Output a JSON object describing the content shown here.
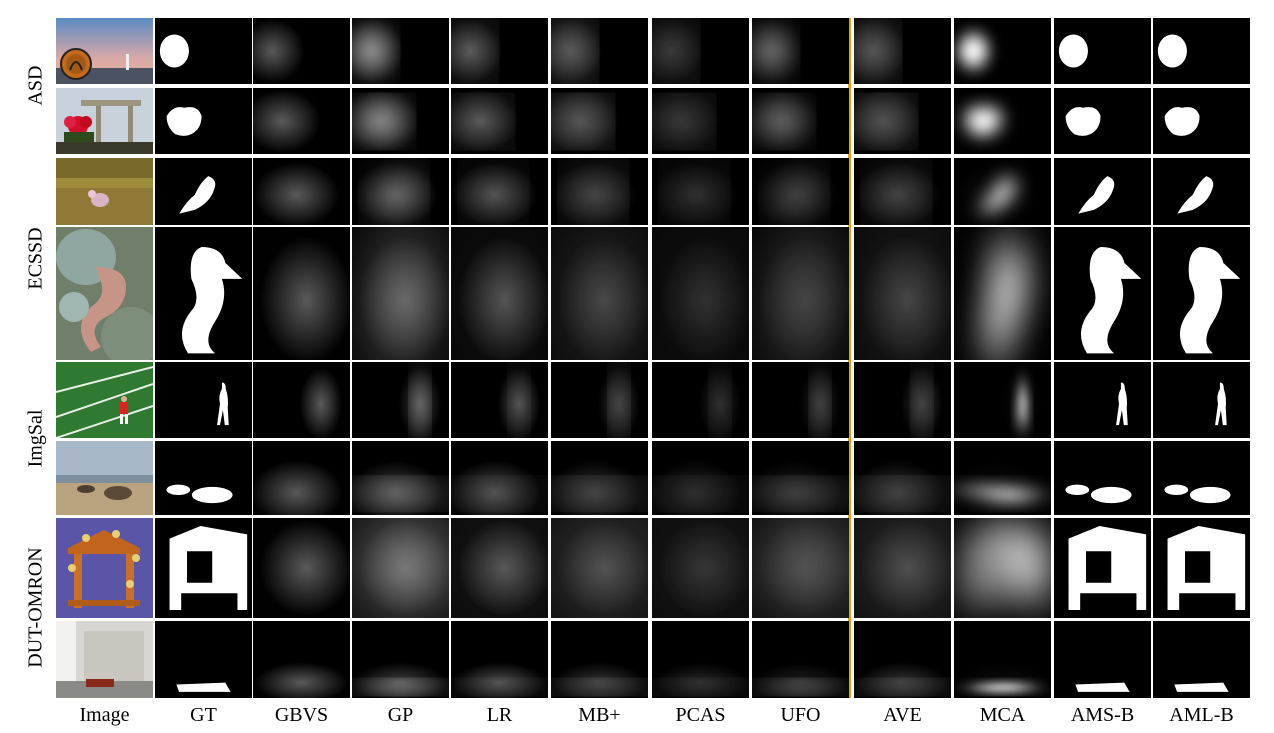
{
  "figure": {
    "columns": [
      "Image",
      "GT",
      "GBVS",
      "GP",
      "LR",
      "MB+",
      "PCAS",
      "UFO",
      "AVE",
      "MCA",
      "AMS-B",
      "AML-B"
    ],
    "datasets": [
      {
        "name": "ASD",
        "rows": [
          {
            "image": "sign-at-dusk",
            "objects": [
              {
                "shape": "circle"
              }
            ]
          },
          {
            "image": "red-flower-and-gate",
            "objects": [
              {
                "shape": "flower"
              }
            ]
          }
        ]
      },
      {
        "name": "ECSSD",
        "rows": [
          {
            "image": "bird-on-grass",
            "objects": [
              {
                "shape": "bird"
              }
            ]
          },
          {
            "image": "seahorse",
            "objects": [
              {
                "shape": "seahorse"
              }
            ]
          }
        ]
      },
      {
        "name": "ImgSal",
        "rows": [
          {
            "image": "golfer-on-field",
            "objects": [
              {
                "shape": "person"
              }
            ]
          },
          {
            "image": "rocks-on-beach",
            "objects": [
              {
                "shape": "rocks"
              }
            ]
          }
        ]
      },
      {
        "name": "DUT-OMRON",
        "rows": [
          {
            "image": "wooden-arch",
            "objects": [
              {
                "shape": "arch"
              }
            ]
          },
          {
            "image": "room-with-bench",
            "objects": [
              {
                "shape": "bench"
              }
            ]
          }
        ]
      }
    ],
    "divider_color": "#e0a020"
  }
}
